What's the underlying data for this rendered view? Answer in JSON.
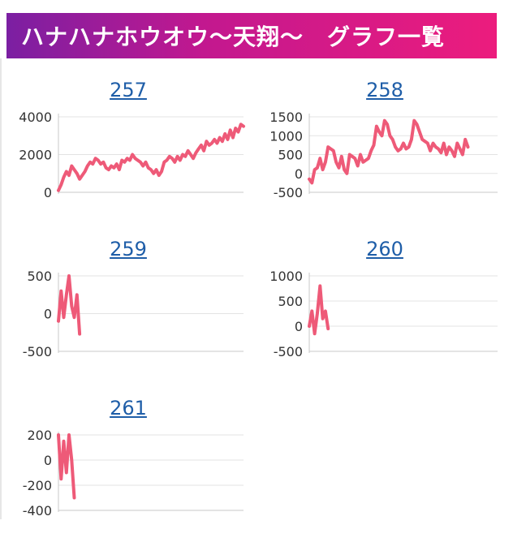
{
  "header": {
    "title": "ハナハナホウオウ〜天翔〜　グラフ一覧"
  },
  "colors": {
    "line": "#ee5a78",
    "grid": "#e3e3e3",
    "axis": "#c8c8c8",
    "link": "#1f5ea8"
  },
  "chart_data": [
    {
      "type": "line",
      "title": "257",
      "ylim": [
        0,
        4000
      ],
      "yticks": [
        0,
        2000,
        4000
      ],
      "grid": true,
      "x": [
        0,
        1,
        2,
        3,
        4,
        5,
        6,
        7,
        8,
        9,
        10,
        11,
        12,
        13,
        14,
        15,
        16,
        17,
        18,
        19,
        20,
        21,
        22,
        23,
        24,
        25,
        26,
        27,
        28,
        29,
        30,
        31,
        32,
        33,
        34,
        35,
        36,
        37,
        38,
        39,
        40,
        41,
        42,
        43,
        44,
        45,
        46,
        47,
        48,
        49,
        50,
        51,
        52,
        53,
        54,
        55,
        56,
        57,
        58,
        59,
        60,
        61,
        62,
        63,
        64,
        65,
        66,
        67,
        68,
        69,
        70
      ],
      "values": [
        100,
        400,
        800,
        1100,
        900,
        1400,
        1200,
        1000,
        700,
        900,
        1100,
        1400,
        1600,
        1500,
        1800,
        1700,
        1500,
        1600,
        1300,
        1200,
        1400,
        1300,
        1500,
        1200,
        1700,
        1600,
        1800,
        1700,
        2000,
        1800,
        1700,
        1600,
        1400,
        1600,
        1300,
        1200,
        1000,
        1200,
        900,
        1100,
        1600,
        1700,
        1900,
        1800,
        1600,
        1900,
        1700,
        2000,
        1900,
        2200,
        2000,
        1800,
        2100,
        2300,
        2500,
        2200,
        2700,
        2500,
        2600,
        2800,
        2600,
        2900,
        2700,
        3100,
        2800,
        3300,
        2900,
        3400,
        3200,
        3600,
        3500
      ],
      "series": [
        {
          "name": ""
        }
      ]
    },
    {
      "type": "line",
      "title": "258",
      "ylim": [
        -500,
        1500
      ],
      "yticks": [
        -500,
        0,
        500,
        1000,
        1500
      ],
      "grid": true,
      "x": [
        0,
        1,
        2,
        3,
        4,
        5,
        6,
        7,
        8,
        9,
        10,
        11,
        12,
        13,
        14,
        15,
        16,
        17,
        18,
        19,
        20,
        21,
        22,
        23,
        24,
        25,
        26,
        27,
        28,
        29,
        30,
        31,
        32,
        33,
        34,
        35,
        36,
        37,
        38,
        39,
        40,
        41,
        42,
        43,
        44,
        45,
        46,
        47,
        48,
        49,
        50,
        51,
        52,
        53,
        54,
        55,
        56,
        57,
        58,
        59
      ],
      "values": [
        -150,
        -250,
        100,
        150,
        400,
        100,
        300,
        700,
        650,
        600,
        300,
        150,
        450,
        100,
        0,
        500,
        450,
        400,
        200,
        500,
        300,
        350,
        400,
        600,
        750,
        1250,
        1100,
        1000,
        1400,
        1300,
        1000,
        900,
        700,
        600,
        650,
        800,
        650,
        700,
        900,
        1400,
        1300,
        1100,
        900,
        850,
        800,
        600,
        800,
        700,
        650,
        550,
        800,
        500,
        700,
        600,
        450,
        800,
        650,
        500,
        900,
        700
      ]
    },
    {
      "type": "line",
      "title": "259",
      "ylim": [
        -500,
        500
      ],
      "yticks": [
        -500,
        0,
        500
      ],
      "grid": true,
      "x": [
        0,
        1,
        2,
        3,
        4,
        5,
        6,
        7,
        8
      ],
      "values": [
        -100,
        300,
        -50,
        250,
        500,
        100,
        -50,
        250,
        -270
      ]
    },
    {
      "type": "line",
      "title": "260",
      "ylim": [
        -500,
        1000
      ],
      "yticks": [
        -500,
        0,
        500,
        1000
      ],
      "grid": true,
      "x": [
        0,
        1,
        2,
        3,
        4,
        5,
        6,
        7
      ],
      "values": [
        0,
        300,
        -150,
        250,
        800,
        150,
        300,
        -50
      ]
    },
    {
      "type": "line",
      "title": "261",
      "ylim": [
        -400,
        200
      ],
      "yticks": [
        -400,
        -200,
        0,
        200
      ],
      "grid": true,
      "x": [
        0,
        1,
        2,
        3,
        4,
        5,
        6
      ],
      "values": [
        200,
        -150,
        150,
        -100,
        200,
        0,
        -300
      ]
    }
  ]
}
